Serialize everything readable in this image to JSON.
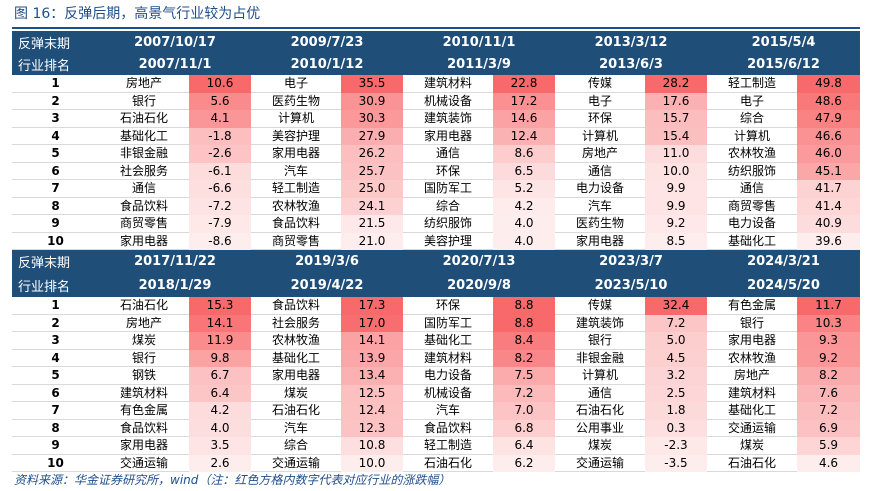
{
  "title": "图 16：反弹后期，高景气行业较为占优",
  "footer": "资料来源：华金证券研究所，wind（注：红色方格内数字代表对应行业的涨跌幅）",
  "header_labels": {
    "line1": "反弹末期",
    "line2": "行业排名"
  },
  "colors": {
    "header_bg": "#1f4e79",
    "title_blue": "#1f4e8c",
    "heat_max": "#f8696b",
    "heat_min": "#ffffff"
  },
  "blocks": [
    {
      "periods": [
        {
          "start": "2007/10/17",
          "end": "2007/11/1"
        },
        {
          "start": "2009/7/23",
          "end": "2010/1/12"
        },
        {
          "start": "2010/11/1",
          "end": "2011/3/9"
        },
        {
          "start": "2013/3/12",
          "end": "2013/6/3"
        },
        {
          "start": "2015/5/4",
          "end": "2015/6/12"
        }
      ],
      "rows": [
        {
          "rank": "1",
          "cells": [
            [
              "房地产",
              "10.6"
            ],
            [
              "电子",
              "35.5"
            ],
            [
              "建筑材料",
              "22.8"
            ],
            [
              "传媒",
              "28.2"
            ],
            [
              "轻工制造",
              "49.8"
            ]
          ]
        },
        {
          "rank": "2",
          "cells": [
            [
              "银行",
              "5.6"
            ],
            [
              "医药生物",
              "30.9"
            ],
            [
              "机械设备",
              "17.2"
            ],
            [
              "电子",
              "17.6"
            ],
            [
              "电子",
              "48.6"
            ]
          ]
        },
        {
          "rank": "3",
          "cells": [
            [
              "石油石化",
              "4.1"
            ],
            [
              "计算机",
              "30.3"
            ],
            [
              "建筑装饰",
              "14.6"
            ],
            [
              "环保",
              "15.7"
            ],
            [
              "综合",
              "47.9"
            ]
          ]
        },
        {
          "rank": "4",
          "cells": [
            [
              "基础化工",
              "-1.8"
            ],
            [
              "美容护理",
              "27.9"
            ],
            [
              "家用电器",
              "12.4"
            ],
            [
              "计算机",
              "15.4"
            ],
            [
              "计算机",
              "46.6"
            ]
          ]
        },
        {
          "rank": "5",
          "cells": [
            [
              "非银金融",
              "-2.6"
            ],
            [
              "家用电器",
              "26.2"
            ],
            [
              "通信",
              "8.6"
            ],
            [
              "房地产",
              "11.0"
            ],
            [
              "农林牧渔",
              "46.0"
            ]
          ]
        },
        {
          "rank": "6",
          "cells": [
            [
              "社会服务",
              "-6.1"
            ],
            [
              "汽车",
              "25.7"
            ],
            [
              "环保",
              "6.5"
            ],
            [
              "通信",
              "10.0"
            ],
            [
              "纺织服饰",
              "45.1"
            ]
          ]
        },
        {
          "rank": "7",
          "cells": [
            [
              "通信",
              "-6.6"
            ],
            [
              "轻工制造",
              "25.0"
            ],
            [
              "国防军工",
              "5.2"
            ],
            [
              "电力设备",
              "9.9"
            ],
            [
              "通信",
              "41.7"
            ]
          ]
        },
        {
          "rank": "8",
          "cells": [
            [
              "食品饮料",
              "-7.2"
            ],
            [
              "农林牧渔",
              "24.1"
            ],
            [
              "综合",
              "4.2"
            ],
            [
              "汽车",
              "9.9"
            ],
            [
              "商贸零售",
              "41.4"
            ]
          ]
        },
        {
          "rank": "9",
          "cells": [
            [
              "商贸零售",
              "-7.9"
            ],
            [
              "食品饮料",
              "21.5"
            ],
            [
              "纺织服饰",
              "4.0"
            ],
            [
              "医药生物",
              "9.2"
            ],
            [
              "电力设备",
              "40.9"
            ]
          ]
        },
        {
          "rank": "10",
          "cells": [
            [
              "家用电器",
              "-8.6"
            ],
            [
              "商贸零售",
              "21.0"
            ],
            [
              "美容护理",
              "4.0"
            ],
            [
              "家用电器",
              "8.5"
            ],
            [
              "基础化工",
              "39.6"
            ]
          ]
        }
      ]
    },
    {
      "periods": [
        {
          "start": "2017/11/22",
          "end": "2018/1/29"
        },
        {
          "start": "2019/3/6",
          "end": "2019/4/22"
        },
        {
          "start": "2020/7/13",
          "end": "2020/9/8"
        },
        {
          "start": "2023/3/7",
          "end": "2023/5/10"
        },
        {
          "start": "2024/3/21",
          "end": "2024/5/20"
        }
      ],
      "rows": [
        {
          "rank": "1",
          "cells": [
            [
              "石油石化",
              "15.3"
            ],
            [
              "食品饮料",
              "17.3"
            ],
            [
              "环保",
              "8.8"
            ],
            [
              "传媒",
              "32.4"
            ],
            [
              "有色金属",
              "11.7"
            ]
          ]
        },
        {
          "rank": "2",
          "cells": [
            [
              "房地产",
              "14.1"
            ],
            [
              "社会服务",
              "17.0"
            ],
            [
              "国防军工",
              "8.8"
            ],
            [
              "建筑装饰",
              "7.2"
            ],
            [
              "银行",
              "10.3"
            ]
          ]
        },
        {
          "rank": "3",
          "cells": [
            [
              "煤炭",
              "11.9"
            ],
            [
              "农林牧渔",
              "14.1"
            ],
            [
              "基础化工",
              "8.4"
            ],
            [
              "银行",
              "5.0"
            ],
            [
              "家用电器",
              "9.3"
            ]
          ]
        },
        {
          "rank": "4",
          "cells": [
            [
              "银行",
              "9.8"
            ],
            [
              "基础化工",
              "13.9"
            ],
            [
              "建筑材料",
              "8.2"
            ],
            [
              "非银金融",
              "4.5"
            ],
            [
              "农林牧渔",
              "9.2"
            ]
          ]
        },
        {
          "rank": "5",
          "cells": [
            [
              "钢铁",
              "6.7"
            ],
            [
              "家用电器",
              "13.4"
            ],
            [
              "电力设备",
              "7.5"
            ],
            [
              "计算机",
              "3.2"
            ],
            [
              "房地产",
              "8.2"
            ]
          ]
        },
        {
          "rank": "6",
          "cells": [
            [
              "建筑材料",
              "6.4"
            ],
            [
              "煤炭",
              "12.5"
            ],
            [
              "机械设备",
              "7.2"
            ],
            [
              "通信",
              "2.5"
            ],
            [
              "建筑材料",
              "7.6"
            ]
          ]
        },
        {
          "rank": "7",
          "cells": [
            [
              "有色金属",
              "4.2"
            ],
            [
              "石油石化",
              "12.4"
            ],
            [
              "汽车",
              "7.0"
            ],
            [
              "石油石化",
              "1.8"
            ],
            [
              "基础化工",
              "7.2"
            ]
          ]
        },
        {
          "rank": "8",
          "cells": [
            [
              "食品饮料",
              "4.0"
            ],
            [
              "汽车",
              "12.3"
            ],
            [
              "食品饮料",
              "6.8"
            ],
            [
              "公用事业",
              "0.3"
            ],
            [
              "交通运输",
              "6.9"
            ]
          ]
        },
        {
          "rank": "9",
          "cells": [
            [
              "家用电器",
              "3.5"
            ],
            [
              "综合",
              "10.8"
            ],
            [
              "轻工制造",
              "6.4"
            ],
            [
              "煤炭",
              "-2.3"
            ],
            [
              "煤炭",
              "5.9"
            ]
          ]
        },
        {
          "rank": "10",
          "cells": [
            [
              "交通运输",
              "2.6"
            ],
            [
              "交通运输",
              "10.0"
            ],
            [
              "石油石化",
              "6.2"
            ],
            [
              "交通运输",
              "-3.5"
            ],
            [
              "石油石化",
              "4.6"
            ]
          ]
        }
      ]
    }
  ]
}
